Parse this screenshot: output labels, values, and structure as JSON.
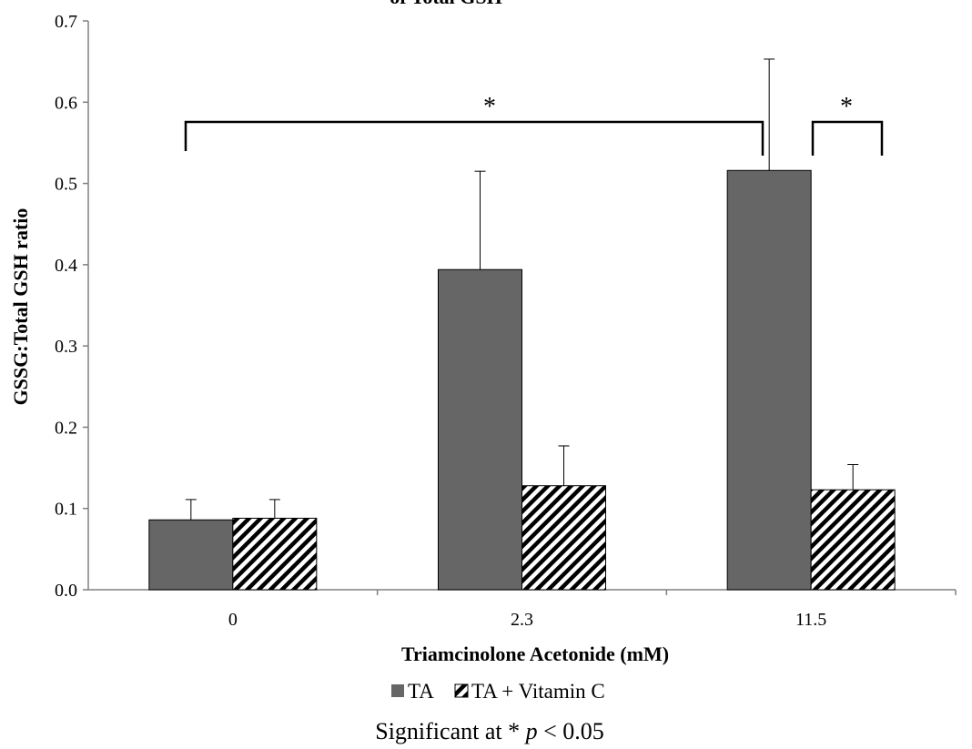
{
  "chart_data": {
    "type": "bar",
    "title": "of Total GSH",
    "xlabel": "Triamcinolone Acetonide (mM)",
    "ylabel": "GSSG:Total GSH ratio",
    "categories": [
      "0",
      "2.3",
      "11.5"
    ],
    "series": [
      {
        "name": "TA",
        "values": [
          0.086,
          0.394,
          0.516
        ],
        "errors": [
          0.025,
          0.121,
          0.137
        ],
        "fill": "solid",
        "color": "#666666"
      },
      {
        "name": "TA + Vitamin C",
        "values": [
          0.088,
          0.128,
          0.123
        ],
        "errors": [
          0.023,
          0.049,
          0.031
        ],
        "fill": "hatched",
        "color": "#ffffff"
      }
    ],
    "ylim": [
      0,
      0.7
    ],
    "yticks": [
      "0.0",
      "0.1",
      "0.2",
      "0.3",
      "0.4",
      "0.5",
      "0.6",
      "0.7"
    ],
    "grid": false,
    "legend": "bottom",
    "significance": [
      {
        "label": "*",
        "from": "0 / TA",
        "to": "11.5 / TA"
      },
      {
        "label": "*",
        "from": "11.5 / TA",
        "to": "11.5 / TA + Vitamin C"
      }
    ],
    "footnote": "Significant at * p < 0.05",
    "footnote_parts": {
      "prefix": "Significant at * ",
      "italic": "p",
      "suffix": " < 0.05"
    }
  }
}
